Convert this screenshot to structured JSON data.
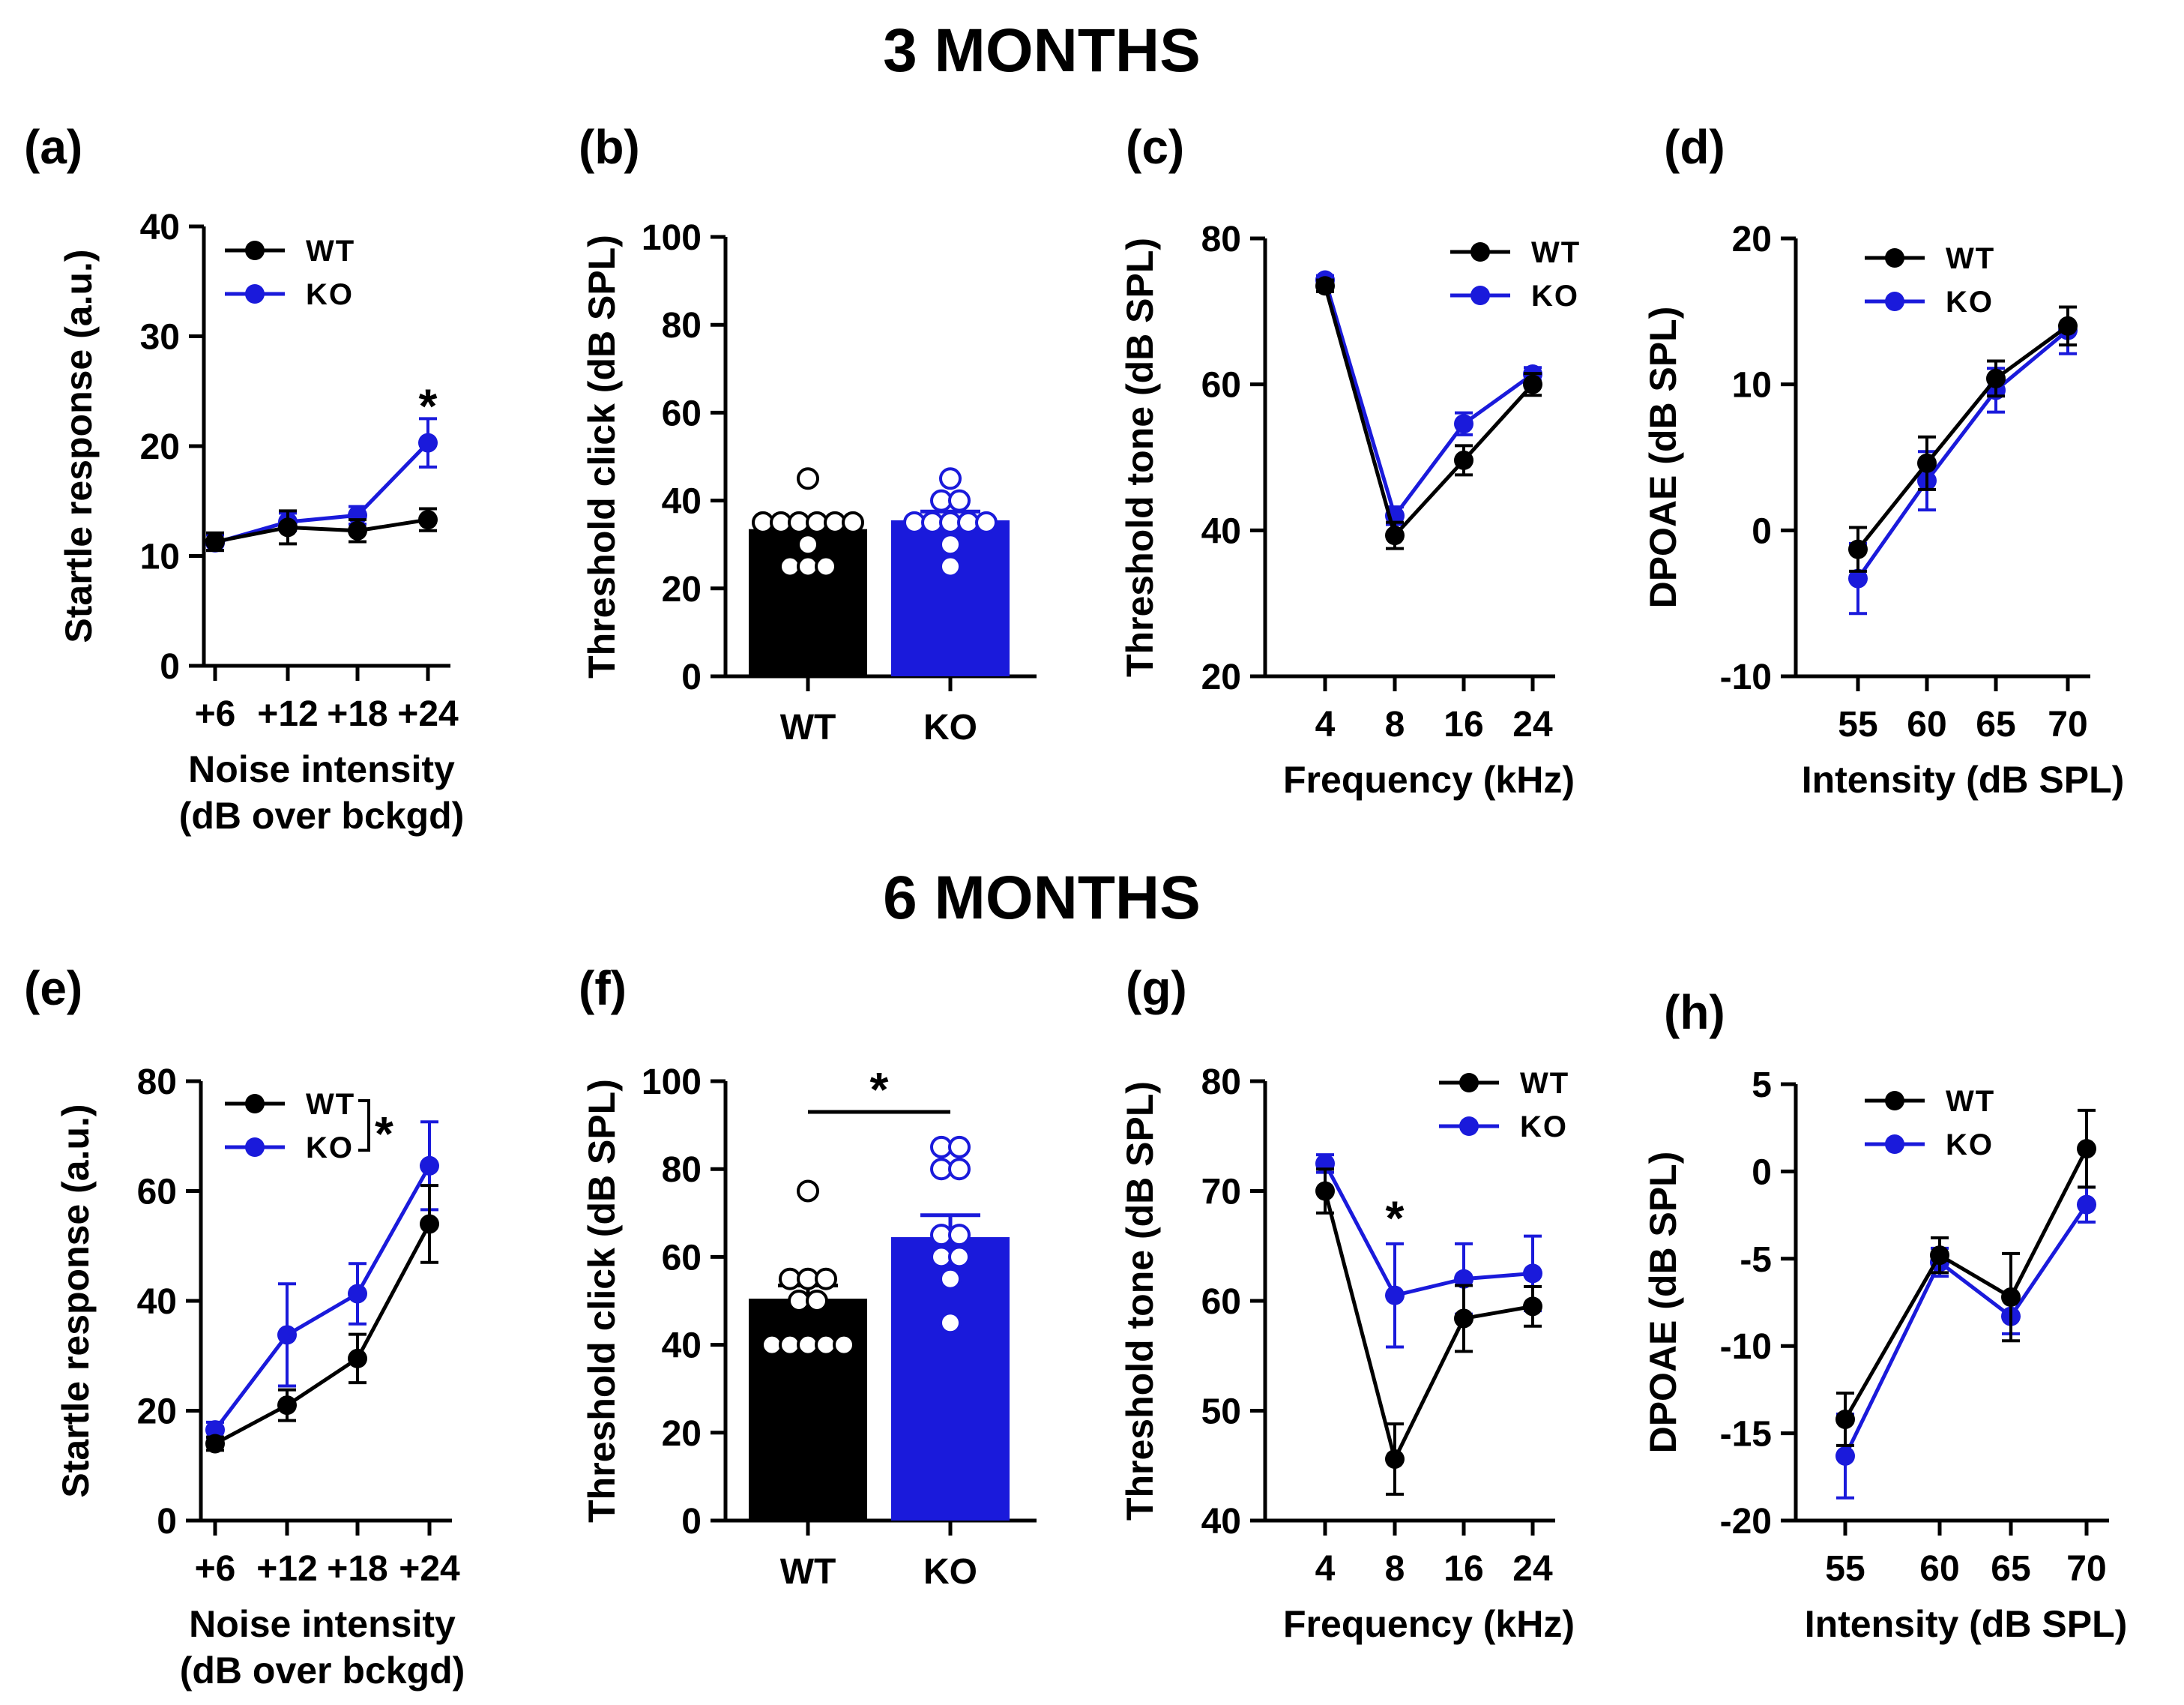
{
  "figure": {
    "section_titles": [
      "3 MONTHS",
      "6 MONTHS"
    ]
  },
  "colors": {
    "wt": "#000000",
    "ko": "#1a1adb"
  },
  "chart_data": [
    {
      "id": "a",
      "panel_label": "(a)",
      "type": "line",
      "ylabel": "Startle response (a.u.)",
      "xlabel": [
        "Noise intensity",
        "(dB over bckgd)"
      ],
      "categories": [
        "+6",
        "+12",
        "+18",
        "+24"
      ],
      "ylim": [
        0,
        40
      ],
      "yticks": [
        "0",
        "10",
        "20",
        "30",
        "40"
      ],
      "legend": [
        "WT",
        "KO"
      ],
      "series": [
        {
          "name": "WT",
          "values": [
            11.3,
            12.6,
            12.3,
            13.3
          ],
          "err": [
            0.8,
            1.5,
            1.0,
            1.0
          ]
        },
        {
          "name": "KO",
          "values": [
            11.2,
            13.1,
            13.7,
            20.3
          ],
          "err": [
            0.7,
            0.8,
            0.8,
            2.2
          ]
        }
      ],
      "annotations": [
        {
          "text": "*",
          "at_category": "+24",
          "y_value": 24.6
        }
      ]
    },
    {
      "id": "b",
      "panel_label": "(b)",
      "type": "bar",
      "ylabel": "Threshold click (dB SPL)",
      "categories": [
        "WT",
        "KO"
      ],
      "ylim": [
        0,
        100
      ],
      "yticks": [
        "0",
        "20",
        "40",
        "60",
        "80",
        "100"
      ],
      "values": [
        33.5,
        35.5
      ],
      "err": [
        2.0,
        2.0
      ],
      "points": [
        [
          45,
          35,
          35,
          35,
          35,
          35,
          35,
          30,
          25,
          25,
          25
        ],
        [
          45,
          40,
          40,
          35,
          35,
          35,
          35,
          35,
          30,
          25
        ]
      ]
    },
    {
      "id": "c",
      "panel_label": "(c)",
      "type": "line",
      "ylabel": "Threshold tone (dB SPL)",
      "xlabel": [
        "Frequency (kHz)"
      ],
      "categories": [
        "4",
        "8",
        "16",
        "24"
      ],
      "ylim": [
        20,
        80
      ],
      "yticks": [
        "20",
        "40",
        "60",
        "80"
      ],
      "legend": [
        "WT",
        "KO"
      ],
      "series": [
        {
          "name": "WT",
          "values": [
            73.5,
            39.3,
            49.6,
            60.0
          ],
          "err": [
            0.8,
            1.8,
            2.0,
            1.5
          ]
        },
        {
          "name": "KO",
          "values": [
            74.3,
            42.0,
            54.6,
            61.4
          ],
          "err": [
            0.6,
            1.2,
            1.5,
            0.9
          ]
        }
      ]
    },
    {
      "id": "d",
      "panel_label": "(d)",
      "type": "line",
      "ylabel": "DPOAE (dB SPL)",
      "xlabel": [
        "Intensity (dB SPL)"
      ],
      "categories": [
        "55",
        "60",
        "65",
        "70"
      ],
      "ylim": [
        -10,
        20
      ],
      "yticks": [
        "-10",
        "0",
        "10",
        "20"
      ],
      "legend": [
        "WT",
        "KO"
      ],
      "series": [
        {
          "name": "WT",
          "values": [
            -1.3,
            4.6,
            10.4,
            14.0
          ],
          "err": [
            1.5,
            1.8,
            1.2,
            1.3
          ]
        },
        {
          "name": "KO",
          "values": [
            -3.3,
            3.4,
            9.6,
            13.7
          ],
          "err": [
            2.4,
            2.0,
            1.5,
            1.6
          ]
        }
      ]
    },
    {
      "id": "e",
      "panel_label": "(e)",
      "type": "line",
      "ylabel": "Startle response (a.u.)",
      "xlabel": [
        "Noise intensity",
        "(dB over bckgd)"
      ],
      "categories": [
        "+6",
        "+12",
        "+18",
        "+24"
      ],
      "ylim": [
        0,
        80
      ],
      "yticks": [
        "0",
        "20",
        "40",
        "60",
        "80"
      ],
      "legend": [
        "WT",
        "KO"
      ],
      "legend_star": "*",
      "series": [
        {
          "name": "WT",
          "values": [
            14.0,
            21.0,
            29.5,
            54.0
          ],
          "err": [
            1.2,
            2.8,
            4.4,
            7.0
          ]
        },
        {
          "name": "KO",
          "values": [
            16.5,
            33.8,
            41.3,
            64.6
          ],
          "err": [
            1.4,
            9.3,
            5.5,
            8.0
          ]
        }
      ]
    },
    {
      "id": "f",
      "panel_label": "(f)",
      "type": "bar",
      "ylabel": "Threshold click (dB SPL)",
      "categories": [
        "WT",
        "KO"
      ],
      "ylim": [
        0,
        100
      ],
      "yticks": [
        "0",
        "20",
        "40",
        "60",
        "80",
        "100"
      ],
      "values": [
        50.5,
        64.5
      ],
      "err": [
        3.0,
        5.0
      ],
      "points": [
        [
          75,
          55,
          55,
          55,
          50,
          50,
          40,
          40,
          40,
          40,
          40
        ],
        [
          85,
          85,
          80,
          80,
          65,
          65,
          60,
          60,
          55,
          45
        ]
      ],
      "annotations": [
        {
          "text": "*",
          "type": "bracket",
          "y_value": 93
        }
      ]
    },
    {
      "id": "g",
      "panel_label": "(g)",
      "type": "line",
      "ylabel": "Threshold tone (dB SPL)",
      "xlabel": [
        "Frequency (kHz)"
      ],
      "categories": [
        "4",
        "8",
        "16",
        "24"
      ],
      "ylim": [
        40,
        80
      ],
      "yticks": [
        "40",
        "50",
        "60",
        "70",
        "80"
      ],
      "legend": [
        "WT",
        "KO"
      ],
      "series": [
        {
          "name": "WT",
          "values": [
            70.0,
            45.6,
            58.4,
            59.5
          ],
          "err": [
            2.0,
            3.2,
            3.0,
            1.8
          ]
        },
        {
          "name": "KO",
          "values": [
            72.5,
            60.5,
            62.0,
            62.5
          ],
          "err": [
            0.8,
            4.7,
            3.2,
            3.4
          ]
        }
      ],
      "annotations": [
        {
          "text": "*",
          "at_category": "8",
          "y_value": 68.5
        }
      ]
    },
    {
      "id": "h",
      "panel_label": "(h)",
      "type": "line",
      "ylabel": "DPOAE (dB SPL)",
      "xlabel": [
        "Intensity (dB SPL)"
      ],
      "categories": [
        "55",
        "60",
        "65",
        "70"
      ],
      "ylim": [
        -20,
        5
      ],
      "yticks": [
        "-20",
        "-15",
        "-10",
        "-5",
        "0",
        "5"
      ],
      "legend": [
        "WT",
        "KO"
      ],
      "series": [
        {
          "name": "WT",
          "values": [
            -14.2,
            -4.8,
            -7.2,
            1.3
          ],
          "err": [
            1.5,
            1.0,
            2.5,
            2.2
          ]
        },
        {
          "name": "KO",
          "values": [
            -16.3,
            -5.2,
            -8.3,
            -1.9
          ],
          "err": [
            2.4,
            0.8,
            1.0,
            1.0
          ]
        }
      ]
    }
  ]
}
